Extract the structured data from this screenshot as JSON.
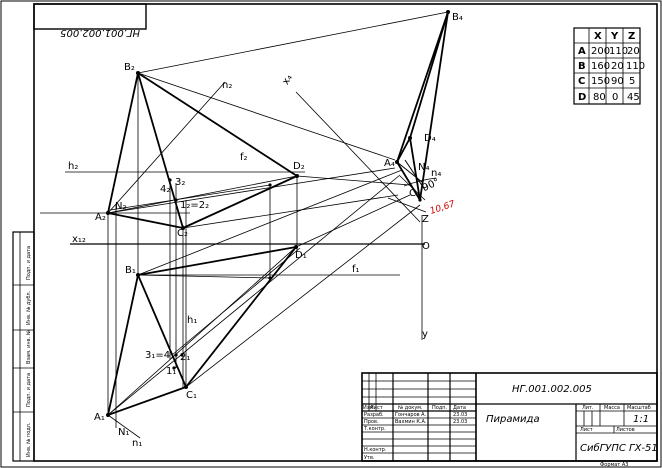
{
  "stamp_top_mirrored": "НГ.001.002.005",
  "coordinate_table": {
    "headers": [
      "",
      "X",
      "Y",
      "Z"
    ],
    "rows": [
      [
        "A",
        "200",
        "110",
        "20"
      ],
      [
        "B",
        "160",
        "20",
        "110"
      ],
      [
        "C",
        "150",
        "90",
        "5"
      ],
      [
        "D",
        "80",
        "0",
        "45"
      ]
    ]
  },
  "labels": {
    "B2": "B₂",
    "n2": "n₂",
    "x4": "x₄",
    "B4": "B₄",
    "f2": "f₂",
    "D2": "D₂",
    "h2": "h₂",
    "Z2": "3₂",
    "42": "4₂",
    "12eq22": "1₂=2₂",
    "N2": "N₂",
    "A2": "A₂",
    "C2": "C₂",
    "x12": "x₁₂",
    "O": "O",
    "D4": "D₄",
    "A4": "A₄",
    "N4": "N₄",
    "n4": "n₄",
    "C4": "C₄",
    "angle": "90°",
    "Z": "Z",
    "B1": "B₁",
    "D1": "D₁",
    "f1": "f₁",
    "h1": "h₁",
    "3eq4": "3₁=4₁",
    "21": "2₁",
    "11": "1₁",
    "C1": "C₁",
    "A1": "A₁",
    "N1": "N₁",
    "n1": "n₁",
    "y": "y"
  },
  "dimension_value": "10,67",
  "title_block": {
    "code": "НГ.001.002.005",
    "title": "Пирамида",
    "org": "СибГУПС  ГХ-51",
    "stage_header": "Лит.",
    "mass_header": "Масса",
    "scale_header": "Масштаб",
    "scale_value": "1:1",
    "sheet_label": "Лист",
    "sheets_label": "Листов",
    "col_headers": [
      "Изм",
      "Лист",
      "№ докум.",
      "Подп.",
      "Дата"
    ],
    "rows": [
      [
        "Разраб.",
        "Гончаров А.",
        "",
        "23.03"
      ],
      [
        "Пров.",
        "Вахмин К.А.",
        "",
        "23.03"
      ],
      [
        "Т.контр.",
        "",
        "",
        ""
      ],
      [
        "",
        "",
        "",
        ""
      ],
      [
        "Н.контр.",
        "",
        "",
        ""
      ],
      [
        "Утв.",
        "",
        "",
        ""
      ]
    ],
    "format": "Формат А3"
  },
  "side_strip": [
    "Инв. № подл.",
    "Подп. и дата",
    "Взам. инв. №",
    "Инв. № дубл.",
    "Подп. и дата"
  ]
}
